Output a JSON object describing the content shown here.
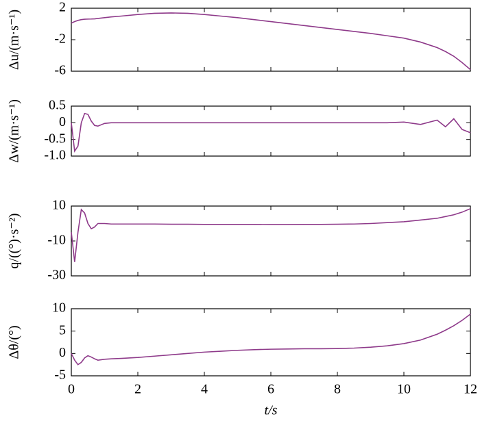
{
  "chart_data": [
    {
      "type": "line",
      "ylabel": "Δu/(m·s⁻¹)",
      "xlim": [
        0,
        12
      ],
      "xticks": [
        0,
        2,
        4,
        6,
        8,
        10,
        12
      ],
      "ylim": [
        -6,
        2
      ],
      "yticks": [
        -6,
        -2,
        2
      ],
      "x": [
        0,
        0.1,
        0.2,
        0.3,
        0.4,
        0.5,
        0.6,
        0.7,
        0.8,
        1,
        1.2,
        1.5,
        2,
        2.5,
        3,
        3.5,
        4,
        4.5,
        5,
        5.5,
        6,
        6.5,
        7,
        7.5,
        8,
        8.5,
        9,
        9.5,
        10,
        10.5,
        11,
        11.25,
        11.5,
        11.75,
        12
      ],
      "series": [
        {
          "color": "#8e3a8a",
          "values": [
            0.1,
            0.3,
            0.45,
            0.55,
            0.6,
            0.62,
            0.63,
            0.65,
            0.7,
            0.8,
            0.9,
            1.0,
            1.2,
            1.35,
            1.4,
            1.35,
            1.2,
            1.0,
            0.8,
            0.55,
            0.3,
            0.05,
            -0.2,
            -0.45,
            -0.7,
            -0.95,
            -1.2,
            -1.5,
            -1.8,
            -2.3,
            -3.0,
            -3.5,
            -4.1,
            -4.9,
            -5.8
          ]
        }
      ]
    },
    {
      "type": "line",
      "ylabel": "Δw/(m·s⁻¹)",
      "xlim": [
        0,
        12
      ],
      "xticks": [
        0,
        2,
        4,
        6,
        8,
        10,
        12
      ],
      "ylim": [
        -1,
        0.5
      ],
      "yticks": [
        {
          "value": -1,
          "label": "-1.0"
        },
        -0.5,
        0,
        0.5
      ],
      "x": [
        0,
        0.1,
        0.2,
        0.3,
        0.4,
        0.5,
        0.6,
        0.7,
        0.8,
        1,
        1.2,
        1.5,
        2,
        2.5,
        3,
        3.5,
        4,
        4.5,
        5,
        5.5,
        6,
        6.5,
        7,
        7.5,
        8,
        8.5,
        9,
        9.5,
        10,
        10.5,
        11,
        11.25,
        11.5,
        11.75,
        12
      ],
      "series": [
        {
          "color": "#8e3a8a",
          "values": [
            0,
            -0.85,
            -0.7,
            0,
            0.28,
            0.25,
            0.05,
            -0.08,
            -0.1,
            -0.02,
            0,
            0,
            0,
            0,
            0,
            0,
            0,
            0,
            0,
            0,
            0,
            0,
            0,
            0,
            0,
            0,
            0,
            0,
            0.02,
            -0.05,
            0.08,
            -0.12,
            0.12,
            -0.2,
            -0.3
          ]
        }
      ]
    },
    {
      "type": "line",
      "ylabel": "q/((°)·s⁻²)",
      "xlim": [
        0,
        12
      ],
      "xticks": [
        0,
        2,
        4,
        6,
        8,
        10,
        12
      ],
      "ylim": [
        -30,
        10
      ],
      "yticks": [
        -30,
        -10,
        10
      ],
      "x": [
        0,
        0.1,
        0.2,
        0.3,
        0.4,
        0.5,
        0.6,
        0.7,
        0.8,
        1,
        1.2,
        1.5,
        2,
        2.5,
        3,
        3.5,
        4,
        4.5,
        5,
        5.5,
        6,
        6.5,
        7,
        7.5,
        8,
        8.5,
        9,
        9.5,
        10,
        10.5,
        11,
        11.25,
        11.5,
        11.75,
        12
      ],
      "series": [
        {
          "color": "#8e3a8a",
          "values": [
            -5,
            -22,
            -5,
            8,
            6,
            0,
            -3,
            -2,
            0,
            0,
            -0.3,
            -0.3,
            -0.3,
            -0.3,
            -0.4,
            -0.4,
            -0.5,
            -0.5,
            -0.5,
            -0.5,
            -0.6,
            -0.6,
            -0.5,
            -0.5,
            -0.4,
            -0.3,
            0,
            0.5,
            1,
            2,
            3,
            4,
            5,
            6.5,
            8.5
          ]
        }
      ]
    },
    {
      "type": "line",
      "ylabel": "Δθ/(°)",
      "xlabel": "t/s",
      "xlim": [
        0,
        12
      ],
      "xticks": [
        0,
        2,
        4,
        6,
        8,
        10,
        12
      ],
      "ylim": [
        -5,
        10
      ],
      "yticks": [
        -5,
        0,
        5,
        10
      ],
      "x": [
        0,
        0.1,
        0.2,
        0.3,
        0.4,
        0.5,
        0.6,
        0.7,
        0.8,
        1,
        1.2,
        1.5,
        2,
        2.5,
        3,
        3.5,
        4,
        4.5,
        5,
        5.5,
        6,
        6.5,
        7,
        7.5,
        8,
        8.5,
        9,
        9.5,
        10,
        10.5,
        11,
        11.25,
        11.5,
        11.75,
        12
      ],
      "series": [
        {
          "color": "#8e3a8a",
          "values": [
            0,
            -1.5,
            -2.5,
            -2,
            -1,
            -0.5,
            -0.8,
            -1.2,
            -1.5,
            -1.3,
            -1.2,
            -1.1,
            -0.9,
            -0.6,
            -0.3,
            0,
            0.3,
            0.5,
            0.7,
            0.85,
            0.95,
            1.0,
            1.05,
            1.05,
            1.1,
            1.2,
            1.4,
            1.7,
            2.2,
            3.0,
            4.3,
            5.2,
            6.2,
            7.4,
            8.8
          ]
        }
      ]
    }
  ]
}
